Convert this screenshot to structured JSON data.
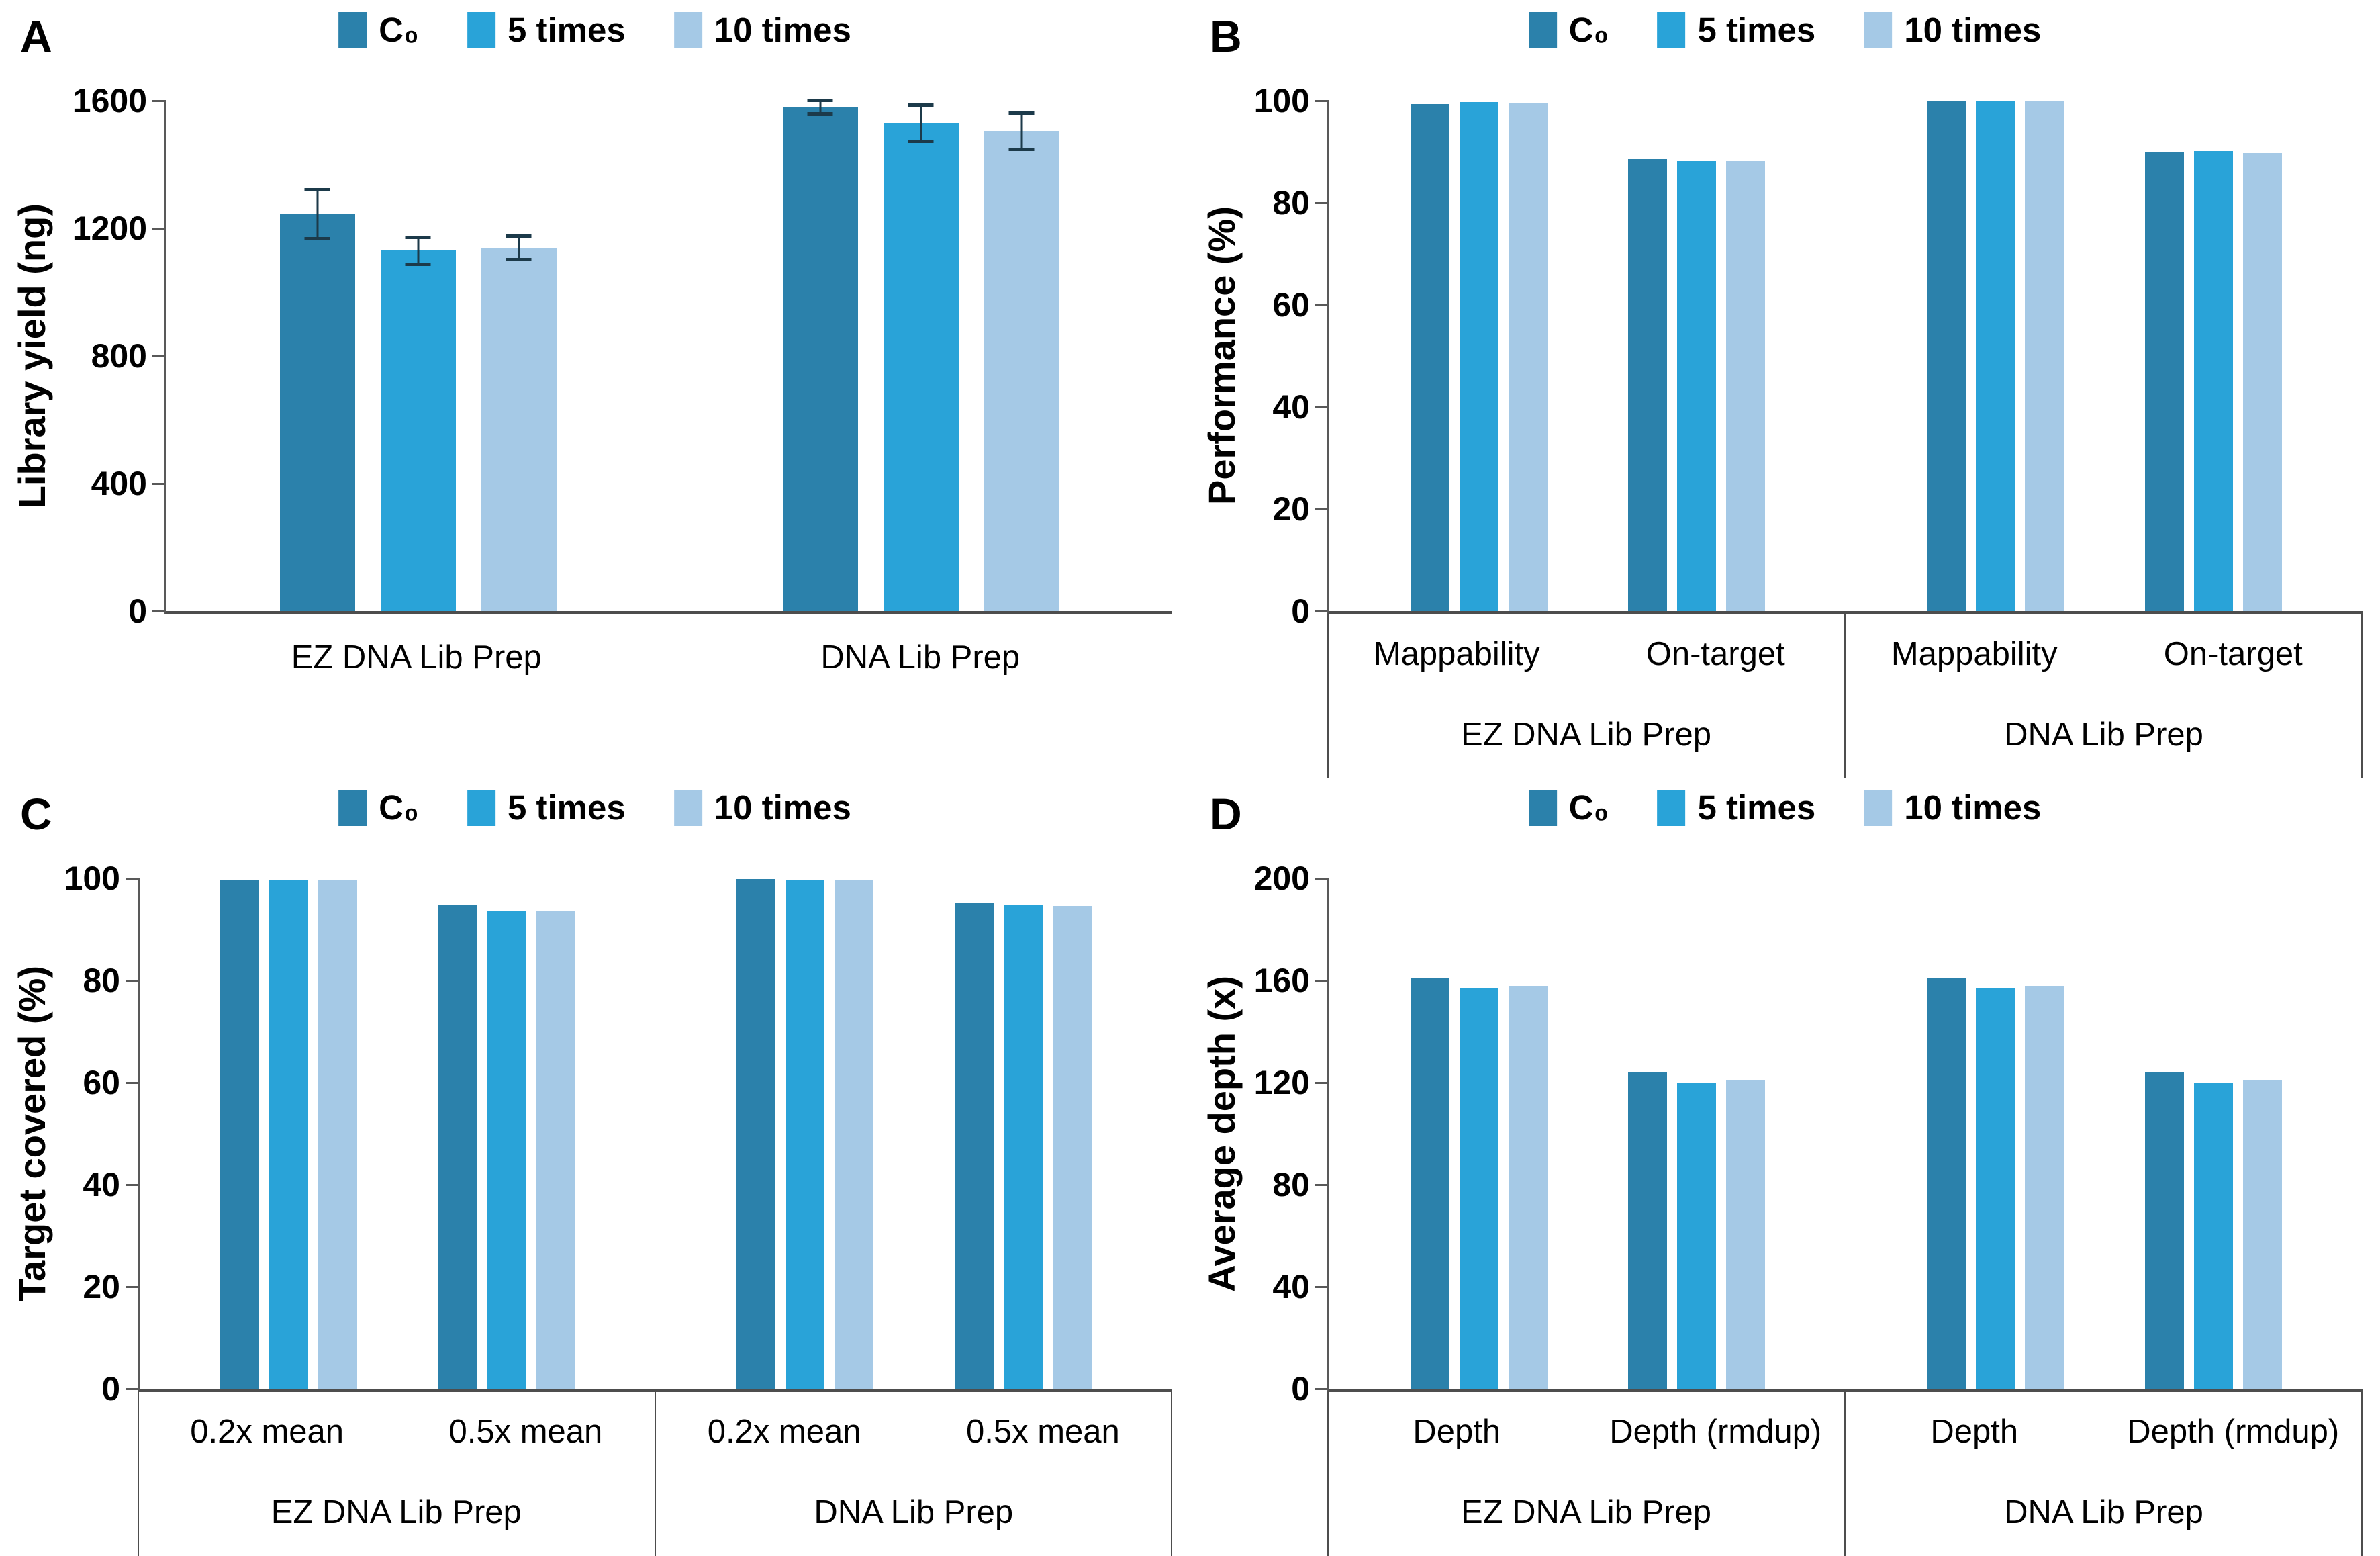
{
  "figure": {
    "legend": {
      "items": [
        {
          "label": "C₀",
          "color": "#2B81AB"
        },
        {
          "label": "5 times",
          "color": "#29A3D8"
        },
        {
          "label": "10 times",
          "color": "#A5C9E6"
        }
      ]
    },
    "axis_color": "#595959",
    "error_bar_color": "#1C3A4A",
    "background_color": "#FFFFFF"
  },
  "chart_data": [
    {
      "id": "A",
      "type": "bar",
      "ylabel": "Library yield (ng)",
      "ylim": [
        0,
        1600
      ],
      "yticks": [
        0,
        400,
        800,
        1200,
        1600
      ],
      "legend": [
        "C₀",
        "5 times",
        "10 times"
      ],
      "legend_position": "top",
      "grid": false,
      "groups": [
        {
          "label": "EZ DNA Lib Prep",
          "categories": [
            {
              "label": null,
              "values": [
                1245,
                1130,
                1140
              ],
              "errors": [
                80,
                45,
                40
              ]
            }
          ]
        },
        {
          "label": "DNA Lib Prep",
          "categories": [
            {
              "label": null,
              "values": [
                1580,
                1530,
                1505
              ],
              "errors": [
                25,
                60,
                60
              ]
            }
          ]
        }
      ]
    },
    {
      "id": "B",
      "type": "bar",
      "ylabel": "Performance (%)",
      "ylim": [
        0,
        100
      ],
      "yticks": [
        0,
        20,
        40,
        60,
        80,
        100
      ],
      "legend": [
        "C₀",
        "5 times",
        "10 times"
      ],
      "legend_position": "top",
      "grid": false,
      "groups": [
        {
          "label": "EZ DNA Lib Prep",
          "categories": [
            {
              "label": "Mappability",
              "values": [
                99.3,
                99.8,
                99.6
              ]
            },
            {
              "label": "On-target",
              "values": [
                88.6,
                88.2,
                88.3
              ]
            }
          ]
        },
        {
          "label": "DNA Lib Prep",
          "categories": [
            {
              "label": "Mappability",
              "values": [
                99.9,
                100,
                99.9
              ]
            },
            {
              "label": "On-target",
              "values": [
                89.9,
                90.1,
                89.8
              ]
            }
          ]
        }
      ]
    },
    {
      "id": "C",
      "type": "bar",
      "ylabel": "Target covered (%)",
      "ylim": [
        0,
        100
      ],
      "yticks": [
        0,
        20,
        40,
        60,
        80,
        100
      ],
      "legend": [
        "C₀",
        "5 times",
        "10 times"
      ],
      "legend_position": "top",
      "grid": false,
      "groups": [
        {
          "label": "EZ DNA Lib Prep",
          "categories": [
            {
              "label": "0.2x mean",
              "values": [
                99.8,
                99.8,
                99.7
              ]
            },
            {
              "label": "0.5x mean",
              "values": [
                94.9,
                93.7,
                93.7
              ]
            }
          ]
        },
        {
          "label": "DNA Lib Prep",
          "categories": [
            {
              "label": "0.2x mean",
              "values": [
                99.9,
                99.8,
                99.8
              ]
            },
            {
              "label": "0.5x mean",
              "values": [
                95.3,
                94.9,
                94.6
              ]
            }
          ]
        }
      ]
    },
    {
      "id": "D",
      "type": "bar",
      "ylabel": "Average depth (x)",
      "ylim": [
        0,
        200
      ],
      "yticks": [
        0,
        40,
        80,
        120,
        160,
        200
      ],
      "legend": [
        "C₀",
        "5 times",
        "10 times"
      ],
      "legend_position": "top",
      "grid": false,
      "groups": [
        {
          "label": "EZ DNA Lib Prep",
          "categories": [
            {
              "label": "Depth",
              "values": [
                161,
                157,
                158
              ]
            },
            {
              "label": "Depth (rmdup)",
              "values": [
                124,
                120,
                121
              ]
            }
          ]
        },
        {
          "label": "DNA Lib Prep",
          "categories": [
            {
              "label": "Depth",
              "values": [
                161,
                157,
                158
              ]
            },
            {
              "label": "Depth (rmdup)",
              "values": [
                124,
                120,
                121
              ]
            }
          ]
        }
      ]
    }
  ]
}
